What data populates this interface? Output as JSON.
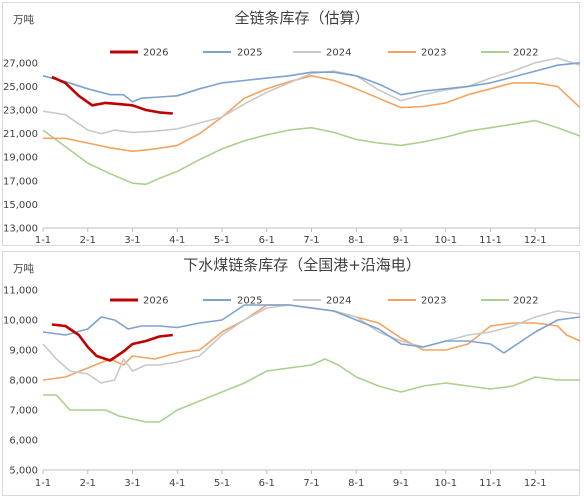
{
  "chart_data": [
    {
      "type": "line",
      "title": "全链条库存（估算）",
      "unit_label": "万吨",
      "x_ticks": [
        "1-1",
        "2-1",
        "3-1",
        "4-1",
        "5-1",
        "6-1",
        "7-1",
        "8-1",
        "9-1",
        "10-1",
        "11-1",
        "12-1"
      ],
      "y_ticks": [
        "13,000",
        "15,000",
        "17,000",
        "19,000",
        "21,000",
        "23,000",
        "25,000",
        "27,000"
      ],
      "ylim": [
        13000,
        28000
      ],
      "xlim": [
        1,
        13
      ],
      "series": [
        {
          "name": "2026",
          "color": "#c00000",
          "points": [
            [
              1.2,
              25800
            ],
            [
              1.5,
              25300
            ],
            [
              1.8,
              24200
            ],
            [
              2.1,
              23400
            ],
            [
              2.4,
              23600
            ],
            [
              2.7,
              23500
            ],
            [
              3.0,
              23400
            ],
            [
              3.3,
              23000
            ],
            [
              3.6,
              22800
            ],
            [
              3.9,
              22700
            ]
          ]
        },
        {
          "name": "2025",
          "color": "#7da2cf",
          "points": [
            [
              1.0,
              25900
            ],
            [
              1.5,
              25400
            ],
            [
              2.0,
              24800
            ],
            [
              2.5,
              24300
            ],
            [
              2.8,
              24300
            ],
            [
              3.0,
              23700
            ],
            [
              3.2,
              24000
            ],
            [
              3.6,
              24100
            ],
            [
              4.0,
              24200
            ],
            [
              4.5,
              24800
            ],
            [
              5.0,
              25300
            ],
            [
              5.5,
              25500
            ],
            [
              6.0,
              25700
            ],
            [
              6.5,
              25900
            ],
            [
              7.0,
              26200
            ],
            [
              7.5,
              26200
            ],
            [
              8.0,
              25900
            ],
            [
              8.5,
              25200
            ],
            [
              9.0,
              24300
            ],
            [
              9.5,
              24600
            ],
            [
              10.0,
              24800
            ],
            [
              10.5,
              25000
            ],
            [
              11.0,
              25300
            ],
            [
              11.5,
              25800
            ],
            [
              12.0,
              26300
            ],
            [
              12.5,
              26800
            ],
            [
              13.0,
              27000
            ]
          ]
        },
        {
          "name": "2024",
          "color": "#c9c9c9",
          "points": [
            [
              1.0,
              22900
            ],
            [
              1.5,
              22600
            ],
            [
              2.0,
              21300
            ],
            [
              2.3,
              21000
            ],
            [
              2.6,
              21300
            ],
            [
              3.0,
              21100
            ],
            [
              3.5,
              21200
            ],
            [
              4.0,
              21400
            ],
            [
              4.5,
              21900
            ],
            [
              5.0,
              22400
            ],
            [
              5.5,
              23500
            ],
            [
              6.0,
              24500
            ],
            [
              6.5,
              25300
            ],
            [
              7.0,
              26100
            ],
            [
              7.5,
              26300
            ],
            [
              8.0,
              25900
            ],
            [
              8.5,
              24700
            ],
            [
              9.0,
              23800
            ],
            [
              9.5,
              24300
            ],
            [
              10.0,
              24700
            ],
            [
              10.5,
              25000
            ],
            [
              11.0,
              25700
            ],
            [
              11.5,
              26300
            ],
            [
              12.0,
              27000
            ],
            [
              12.5,
              27400
            ],
            [
              13.0,
              26800
            ]
          ]
        },
        {
          "name": "2023",
          "color": "#f4a460",
          "points": [
            [
              1.0,
              20600
            ],
            [
              1.5,
              20600
            ],
            [
              2.0,
              20200
            ],
            [
              2.5,
              19800
            ],
            [
              3.0,
              19500
            ],
            [
              3.5,
              19700
            ],
            [
              4.0,
              20000
            ],
            [
              4.5,
              21000
            ],
            [
              5.0,
              22400
            ],
            [
              5.5,
              24000
            ],
            [
              6.0,
              24800
            ],
            [
              6.5,
              25400
            ],
            [
              7.0,
              25900
            ],
            [
              7.5,
              25500
            ],
            [
              8.0,
              24800
            ],
            [
              8.5,
              24000
            ],
            [
              9.0,
              23200
            ],
            [
              9.5,
              23300
            ],
            [
              10.0,
              23600
            ],
            [
              10.5,
              24300
            ],
            [
              11.0,
              24800
            ],
            [
              11.5,
              25300
            ],
            [
              12.0,
              25300
            ],
            [
              12.5,
              25000
            ],
            [
              13.0,
              23200
            ]
          ]
        },
        {
          "name": "2022",
          "color": "#a9d18e",
          "points": [
            [
              1.0,
              21300
            ],
            [
              1.5,
              19900
            ],
            [
              2.0,
              18500
            ],
            [
              2.5,
              17600
            ],
            [
              3.0,
              16800
            ],
            [
              3.3,
              16700
            ],
            [
              3.6,
              17200
            ],
            [
              4.0,
              17800
            ],
            [
              4.5,
              18800
            ],
            [
              5.0,
              19700
            ],
            [
              5.5,
              20400
            ],
            [
              6.0,
              20900
            ],
            [
              6.5,
              21300
            ],
            [
              7.0,
              21500
            ],
            [
              7.5,
              21100
            ],
            [
              8.0,
              20500
            ],
            [
              8.5,
              20200
            ],
            [
              9.0,
              20000
            ],
            [
              9.5,
              20300
            ],
            [
              10.0,
              20700
            ],
            [
              10.5,
              21200
            ],
            [
              11.0,
              21500
            ],
            [
              11.5,
              21800
            ],
            [
              12.0,
              22100
            ],
            [
              12.5,
              21500
            ],
            [
              13.0,
              20800
            ]
          ]
        }
      ]
    },
    {
      "type": "line",
      "title": "下水煤链条库存（全国港+沿海电）",
      "unit_label": "万吨",
      "x_ticks": [
        "1-1",
        "2-1",
        "3-1",
        "4-1",
        "5-1",
        "6-1",
        "7-1",
        "8-1",
        "9-1",
        "10-1",
        "11-1",
        "12-1"
      ],
      "y_ticks": [
        "5,000",
        "6,000",
        "7,000",
        "8,000",
        "9,000",
        "10,000",
        "11,000"
      ],
      "ylim": [
        5000,
        11000
      ],
      "xlim": [
        1,
        13
      ],
      "series": [
        {
          "name": "2026",
          "color": "#c00000",
          "points": [
            [
              1.2,
              9850
            ],
            [
              1.5,
              9800
            ],
            [
              1.8,
              9500
            ],
            [
              2.0,
              9100
            ],
            [
              2.2,
              8800
            ],
            [
              2.5,
              8650
            ],
            [
              2.8,
              8950
            ],
            [
              3.0,
              9200
            ],
            [
              3.3,
              9300
            ],
            [
              3.6,
              9450
            ],
            [
              3.9,
              9500
            ]
          ]
        },
        {
          "name": "2025",
          "color": "#7da2cf",
          "points": [
            [
              1.0,
              9600
            ],
            [
              1.5,
              9500
            ],
            [
              2.0,
              9700
            ],
            [
              2.3,
              10100
            ],
            [
              2.6,
              10000
            ],
            [
              2.9,
              9700
            ],
            [
              3.2,
              9800
            ],
            [
              3.6,
              9800
            ],
            [
              4.0,
              9750
            ],
            [
              4.5,
              9900
            ],
            [
              5.0,
              10000
            ],
            [
              5.5,
              10500
            ],
            [
              6.0,
              10500
            ],
            [
              6.5,
              10500
            ],
            [
              7.0,
              10400
            ],
            [
              7.5,
              10300
            ],
            [
              8.0,
              10000
            ],
            [
              8.5,
              9700
            ],
            [
              9.0,
              9200
            ],
            [
              9.5,
              9100
            ],
            [
              10.0,
              9300
            ],
            [
              10.5,
              9300
            ],
            [
              11.0,
              9200
            ],
            [
              11.3,
              8900
            ],
            [
              11.6,
              9200
            ],
            [
              12.0,
              9600
            ],
            [
              12.5,
              10000
            ],
            [
              13.0,
              10100
            ]
          ]
        },
        {
          "name": "2024",
          "color": "#c9c9c9",
          "points": [
            [
              1.0,
              9200
            ],
            [
              1.3,
              8700
            ],
            [
              1.6,
              8300
            ],
            [
              2.0,
              8200
            ],
            [
              2.3,
              7900
            ],
            [
              2.6,
              8000
            ],
            [
              2.8,
              8700
            ],
            [
              3.0,
              8300
            ],
            [
              3.3,
              8500
            ],
            [
              3.6,
              8500
            ],
            [
              4.0,
              8600
            ],
            [
              4.5,
              8800
            ],
            [
              5.0,
              9500
            ],
            [
              5.5,
              10000
            ],
            [
              6.0,
              10400
            ],
            [
              6.5,
              10500
            ],
            [
              7.0,
              10400
            ],
            [
              7.5,
              10300
            ],
            [
              8.0,
              10100
            ],
            [
              8.5,
              9600
            ],
            [
              9.0,
              9300
            ],
            [
              9.5,
              9100
            ],
            [
              10.0,
              9300
            ],
            [
              10.5,
              9500
            ],
            [
              11.0,
              9600
            ],
            [
              11.5,
              9800
            ],
            [
              12.0,
              10100
            ],
            [
              12.5,
              10300
            ],
            [
              13.0,
              10200
            ]
          ]
        },
        {
          "name": "2023",
          "color": "#f4a460",
          "points": [
            [
              1.0,
              8000
            ],
            [
              1.5,
              8100
            ],
            [
              2.0,
              8400
            ],
            [
              2.5,
              8700
            ],
            [
              2.8,
              8500
            ],
            [
              3.0,
              8800
            ],
            [
              3.5,
              8700
            ],
            [
              4.0,
              8900
            ],
            [
              4.5,
              9000
            ],
            [
              5.0,
              9600
            ],
            [
              5.5,
              10000
            ],
            [
              6.0,
              10500
            ],
            [
              6.5,
              10500
            ],
            [
              7.0,
              10400
            ],
            [
              7.5,
              10300
            ],
            [
              8.0,
              10100
            ],
            [
              8.5,
              9900
            ],
            [
              9.0,
              9400
            ],
            [
              9.5,
              9000
            ],
            [
              10.0,
              9000
            ],
            [
              10.5,
              9200
            ],
            [
              11.0,
              9800
            ],
            [
              11.5,
              9900
            ],
            [
              12.0,
              9900
            ],
            [
              12.5,
              9800
            ],
            [
              12.7,
              9500
            ],
            [
              13.0,
              9300
            ]
          ]
        },
        {
          "name": "2022",
          "color": "#a9d18e",
          "points": [
            [
              1.0,
              7500
            ],
            [
              1.3,
              7500
            ],
            [
              1.6,
              7000
            ],
            [
              2.0,
              7000
            ],
            [
              2.4,
              7000
            ],
            [
              2.7,
              6800
            ],
            [
              3.0,
              6700
            ],
            [
              3.3,
              6600
            ],
            [
              3.6,
              6600
            ],
            [
              4.0,
              7000
            ],
            [
              4.5,
              7300
            ],
            [
              5.0,
              7600
            ],
            [
              5.5,
              7900
            ],
            [
              6.0,
              8300
            ],
            [
              6.5,
              8400
            ],
            [
              7.0,
              8500
            ],
            [
              7.3,
              8700
            ],
            [
              7.6,
              8500
            ],
            [
              8.0,
              8100
            ],
            [
              8.5,
              7800
            ],
            [
              9.0,
              7600
            ],
            [
              9.5,
              7800
            ],
            [
              10.0,
              7900
            ],
            [
              10.5,
              7800
            ],
            [
              11.0,
              7700
            ],
            [
              11.5,
              7800
            ],
            [
              12.0,
              8100
            ],
            [
              12.5,
              8000
            ],
            [
              13.0,
              8000
            ]
          ]
        }
      ]
    }
  ]
}
